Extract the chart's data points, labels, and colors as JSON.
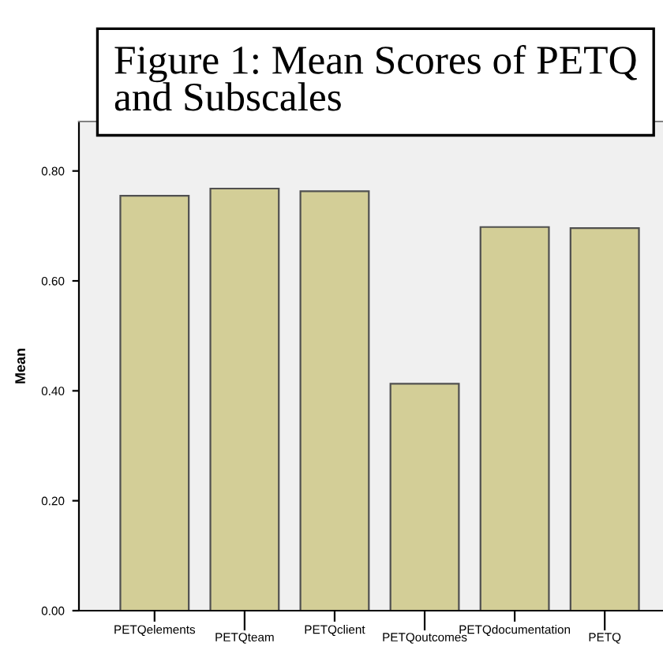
{
  "chart_data": {
    "type": "bar",
    "title": "Figure 1: Mean Scores of PETQ and Subscales",
    "ylabel": "Mean",
    "categories": [
      "PETQelements",
      "PETQteam",
      "PETQclient",
      "PETQoutcomes",
      "PETQdocumentation",
      "PETQ"
    ],
    "values": [
      0.755,
      0.768,
      0.763,
      0.413,
      0.698,
      0.696
    ],
    "color": "#d3ce97",
    "ylim": [
      0,
      0.89
    ],
    "yticks": [
      {
        "value": 0,
        "label": "0.00"
      },
      {
        "value": 0.2,
        "label": "0.20"
      },
      {
        "value": 0.4,
        "label": "0.40"
      },
      {
        "value": 0.6,
        "label": "0.60"
      },
      {
        "value": 0.8,
        "label": "0.80"
      }
    ],
    "grid": false
  }
}
